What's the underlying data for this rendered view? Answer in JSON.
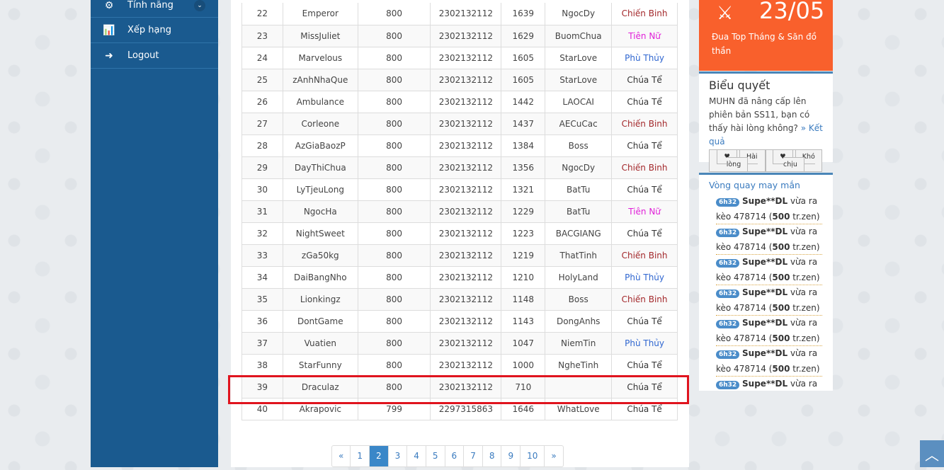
{
  "sidebar": {
    "items": [
      {
        "label": "Tính năng",
        "icon": "gears-icon",
        "glyph": "⚙",
        "has_chevron": true
      },
      {
        "label": "Xếp hạng",
        "icon": "bar-chart-icon",
        "glyph": "📊"
      },
      {
        "label": "Logout",
        "icon": "logout-icon",
        "glyph": "➜"
      }
    ]
  },
  "table": {
    "rows": [
      [
        "22",
        "Emperor",
        "800",
        "2302132112",
        "1639",
        "NgocDy",
        "Chiến Binh"
      ],
      [
        "23",
        "MissJuliet",
        "800",
        "2302132112",
        "1629",
        "BuomChua",
        "Tiên Nữ"
      ],
      [
        "24",
        "Marvelous",
        "800",
        "2302132112",
        "1605",
        "StarLove",
        "Phù Thủy"
      ],
      [
        "25",
        "zAnhNhaQue",
        "800",
        "2302132112",
        "1605",
        "StarLove",
        "Chúa Tể"
      ],
      [
        "26",
        "Ambulance",
        "800",
        "2302132112",
        "1442",
        "LAOCAI",
        "Chúa Tể"
      ],
      [
        "27",
        "Corleone",
        "800",
        "2302132112",
        "1437",
        "AECuCac",
        "Chiến Binh"
      ],
      [
        "28",
        "AzGiaBaozP",
        "800",
        "2302132112",
        "1384",
        "Boss",
        "Chúa Tể"
      ],
      [
        "29",
        "DayThiChua",
        "800",
        "2302132112",
        "1356",
        "NgocDy",
        "Chiến Binh"
      ],
      [
        "30",
        "LyTjeuLong",
        "800",
        "2302132112",
        "1321",
        "BatTu",
        "Chúa Tể"
      ],
      [
        "31",
        "NgocHa",
        "800",
        "2302132112",
        "1229",
        "BatTu",
        "Tiên Nữ"
      ],
      [
        "32",
        "NightSweet",
        "800",
        "2302132112",
        "1223",
        "BACGIANG",
        "Chúa Tể"
      ],
      [
        "33",
        "zGa50kg",
        "800",
        "2302132112",
        "1219",
        "ThatTinh",
        "Chiến Binh"
      ],
      [
        "34",
        "DaiBangNho",
        "800",
        "2302132112",
        "1210",
        "HolyLand",
        "Phù Thủy"
      ],
      [
        "35",
        "Lionkingz",
        "800",
        "2302132112",
        "1148",
        "Boss",
        "Chiến Binh"
      ],
      [
        "36",
        "DontGame",
        "800",
        "2302132112",
        "1143",
        "DongAnhs",
        "Chúa Tể"
      ],
      [
        "37",
        "Vuatien",
        "800",
        "2302132112",
        "1047",
        "NiemTin",
        "Phù Thủy"
      ],
      [
        "38",
        "StarFunny",
        "800",
        "2302132112",
        "1000",
        "NgheTinh",
        "Chúa Tể"
      ],
      [
        "39",
        "Draculaz",
        "800",
        "2302132112",
        "710",
        "",
        "Chúa Tể"
      ],
      [
        "40",
        "Akrapovic",
        "799",
        "2297315863",
        "1646",
        "WhatLove",
        "Chúa Tể"
      ]
    ],
    "highlighted_rank": "39",
    "class_colors": {
      "Chiến Binh": "#a3282b",
      "Tiên Nữ": "#e01fd8",
      "Phù Thủy": "#2f66d0",
      "Chúa Tể": "#333333"
    }
  },
  "pagination": {
    "items": [
      "«",
      "1",
      "2",
      "3",
      "4",
      "5",
      "6",
      "7",
      "8",
      "9",
      "10",
      "»"
    ],
    "active": "2"
  },
  "event": {
    "date": "23/05",
    "text": "Đua Top Tháng & Săn đồ thần",
    "icon": "warrior-icon"
  },
  "vote": {
    "title": "Biểu quyết",
    "question": "MUHN đã nâng cấp lên phiên bản SS11, bạn có thấy hài lòng không?",
    "result_link": "» Kết quả",
    "options": [
      "Hài lòng",
      "Khó chịu"
    ]
  },
  "lucky": {
    "title": "Vòng quay may mắn",
    "entries": [
      {
        "time": "6h32",
        "user": "Supe**DL",
        "action": "vừa ra kèo 478714",
        "amount": "500",
        "unit": "tr.zen"
      },
      {
        "time": "6h32",
        "user": "Supe**DL",
        "action": "vừa ra kèo 478714",
        "amount": "500",
        "unit": "tr.zen"
      },
      {
        "time": "6h32",
        "user": "Supe**DL",
        "action": "vừa ra kèo 478714",
        "amount": "500",
        "unit": "tr.zen"
      },
      {
        "time": "6h32",
        "user": "Supe**DL",
        "action": "vừa ra kèo 478714",
        "amount": "500",
        "unit": "tr.zen"
      },
      {
        "time": "6h32",
        "user": "Supe**DL",
        "action": "vừa ra kèo 478714",
        "amount": "500",
        "unit": "tr.zen"
      },
      {
        "time": "6h32",
        "user": "Supe**DL",
        "action": "vừa ra kèo 478714",
        "amount": "500",
        "unit": "tr.zen"
      },
      {
        "time": "6h32",
        "user": "Supe**DL",
        "action": "vừa ra",
        "amount": "",
        "unit": ""
      }
    ]
  },
  "back_to_top": {
    "icon": "chevron-up-icon",
    "glyph": "︿"
  }
}
